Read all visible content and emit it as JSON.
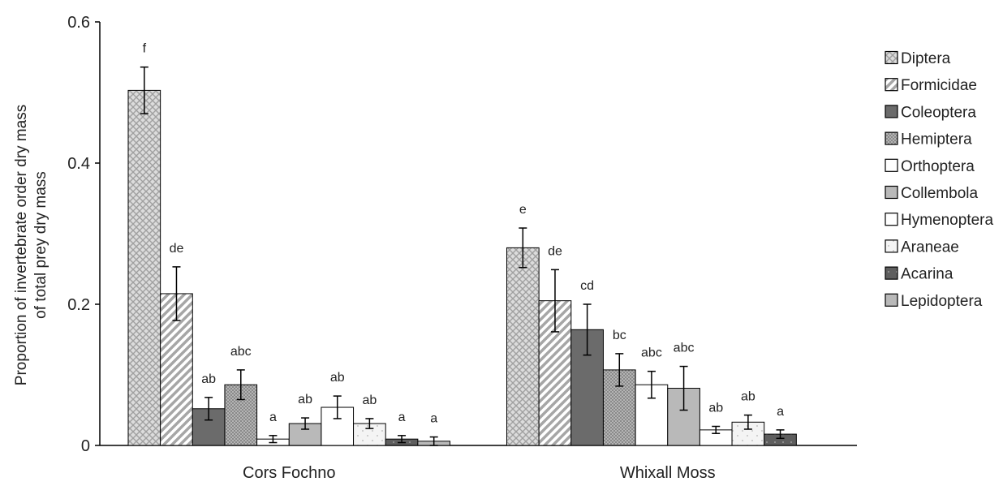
{
  "chart_data": {
    "type": "bar",
    "title": "",
    "xlabel": "",
    "ylabel_lines": [
      "Proportion of invertebrate order dry mass",
      "of total prey dry mass"
    ],
    "ylim": [
      0,
      0.6
    ],
    "yticks": [
      0,
      0.2,
      0.4,
      0.6
    ],
    "ytick_labels": [
      "0",
      "0.2",
      "0.4",
      "0.6"
    ],
    "grid": false,
    "legend_position": "right",
    "categories": [
      "Cors Fochno",
      "Whixall Moss"
    ],
    "series": [
      {
        "name": "Diptera",
        "pattern": "crosshatch",
        "values": [
          0.503,
          0.28
        ],
        "errors": [
          0.033,
          0.028
        ],
        "labels": [
          "f",
          "e"
        ]
      },
      {
        "name": "Formicidae",
        "pattern": "diagonal",
        "values": [
          0.215,
          0.205
        ],
        "errors": [
          0.038,
          0.044
        ],
        "labels": [
          "de",
          "de"
        ]
      },
      {
        "name": "Coleoptera",
        "pattern": "dark",
        "values": [
          0.052,
          0.164
        ],
        "errors": [
          0.016,
          0.036
        ],
        "labels": [
          "ab",
          "cd"
        ]
      },
      {
        "name": "Hemiptera",
        "pattern": "dots",
        "values": [
          0.086,
          0.107
        ],
        "errors": [
          0.021,
          0.023
        ],
        "labels": [
          "abc",
          "bc"
        ]
      },
      {
        "name": "Orthoptera",
        "pattern": "plain",
        "values": [
          0.009,
          0.086
        ],
        "errors": [
          0.005,
          0.019
        ],
        "labels": [
          "a",
          "abc"
        ]
      },
      {
        "name": "Collembola",
        "pattern": "grey",
        "values": [
          0.031,
          0.081
        ],
        "errors": [
          0.008,
          0.031
        ],
        "labels": [
          "ab",
          "abc"
        ]
      },
      {
        "name": "Hymenoptera",
        "pattern": "plain",
        "values": [
          0.054,
          0.022
        ],
        "errors": [
          0.016,
          0.005
        ],
        "labels": [
          "ab",
          "ab"
        ]
      },
      {
        "name": "Araneae",
        "pattern": "speckle",
        "values": [
          0.031,
          0.033
        ],
        "errors": [
          0.007,
          0.01
        ],
        "labels": [
          "ab",
          "ab"
        ]
      },
      {
        "name": "Acarina",
        "pattern": "darkdot",
        "values": [
          0.009,
          0.016
        ],
        "errors": [
          0.005,
          0.006
        ],
        "labels": [
          "a",
          "a"
        ]
      },
      {
        "name": "Lepidoptera",
        "pattern": "grey",
        "values": [
          0.006,
          0.0
        ],
        "errors": [
          0.006,
          0.0
        ],
        "labels": [
          "a",
          ""
        ]
      }
    ]
  }
}
